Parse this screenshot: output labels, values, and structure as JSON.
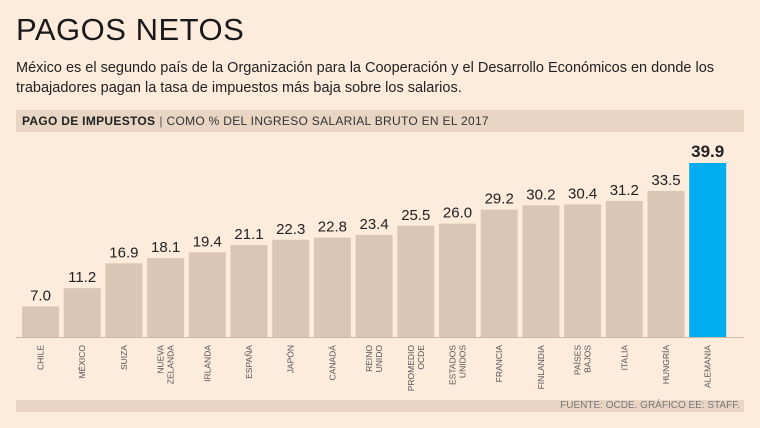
{
  "title": "PAGOS NETOS",
  "subtitle": "México es el segundo país de la Organización para la Cooperación y el Desarrollo Económicos en donde los trabajadores pagan la tasa de impuestos más baja sobre los salarios.",
  "band": {
    "bold": "PAGO DE IMPUESTOS",
    "separator": "|",
    "rest": "COMO % DEL INGRESO SALARIAL BRUTO EN EL 2017"
  },
  "source": "FUENTE: OCDE.  GRÁFICO EE: STAFF.",
  "colors": {
    "bar": "#d9c6b4",
    "highlight": "#00aeef",
    "background": "#fdebdc"
  },
  "chart_data": {
    "type": "bar",
    "title": "PAGO DE IMPUESTOS | COMO % DEL INGRESO SALARIAL BRUTO EN EL 2017",
    "categories": [
      "CHILE",
      "MÉXICO",
      "SUIZA",
      "NUEVA ZELANDA",
      "IRLANDA",
      "ESPAÑA",
      "JAPÓN",
      "CANADÁ",
      "REINO UNIDO",
      "PROMEDIO OCDE",
      "ESTADOS UNIDOS",
      "FRANCIA",
      "FINLANDIA",
      "PAÍSES BAJOS",
      "ITALIA",
      "HUNGRÍA",
      "ALEMANIA"
    ],
    "category_lines": [
      [
        "CHILE"
      ],
      [
        "MÉXICO"
      ],
      [
        "SUIZA"
      ],
      [
        "NUEVA",
        "ZELANDA"
      ],
      [
        "IRLANDA"
      ],
      [
        "ESPAÑA"
      ],
      [
        "JAPÓN"
      ],
      [
        "CANADÁ"
      ],
      [
        "REINO",
        "UNIDO"
      ],
      [
        "PROMEDIO",
        "OCDE"
      ],
      [
        "ESTADOS",
        "UNIDOS"
      ],
      [
        "FRANCIA"
      ],
      [
        "FINLANDIA"
      ],
      [
        "PAÍSES",
        "BAJOS"
      ],
      [
        "ITALIA"
      ],
      [
        "HUNGRÍA"
      ],
      [
        "ALEMANIA"
      ]
    ],
    "values": [
      7.0,
      11.2,
      16.9,
      18.1,
      19.4,
      21.1,
      22.3,
      22.8,
      23.4,
      25.5,
      26.0,
      29.2,
      30.2,
      30.4,
      31.2,
      33.5,
      39.9
    ],
    "labels": [
      "7.0",
      "11.2",
      "16.9",
      "18.1",
      "19.4",
      "21.1",
      "22.3",
      "22.8",
      "23.4",
      "25.5",
      "26.0",
      "29.2",
      "30.2",
      "30.4",
      "31.2",
      "33.5",
      "39.9"
    ],
    "highlight": "ALEMANIA",
    "ylim": [
      0,
      40
    ],
    "grid": false
  }
}
